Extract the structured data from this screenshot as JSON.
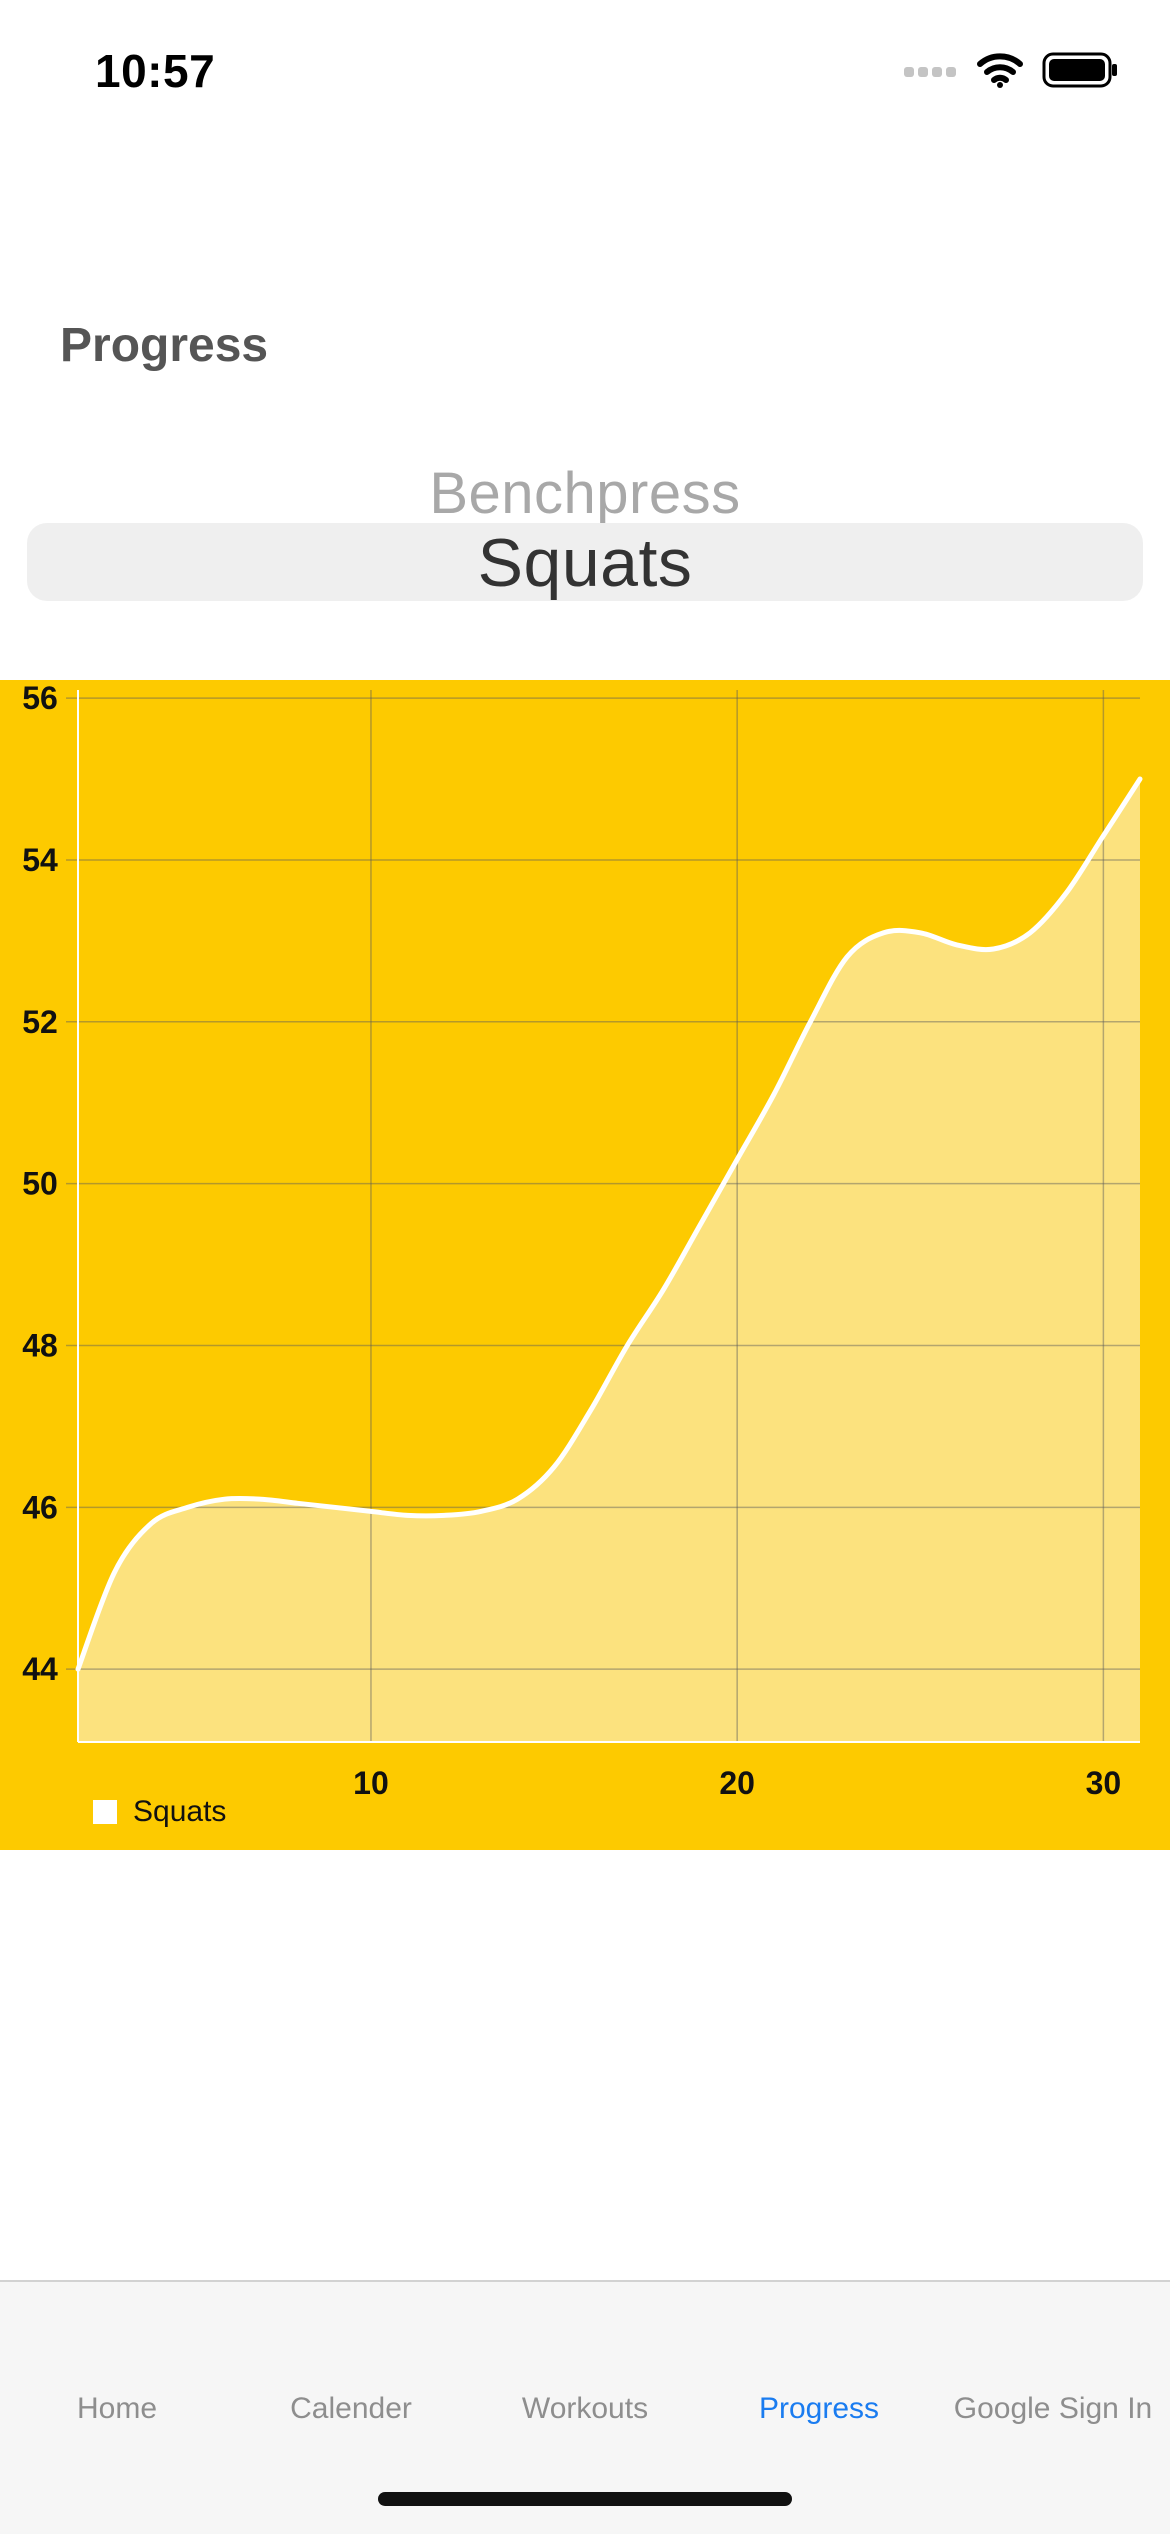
{
  "status_bar": {
    "time": "10:57"
  },
  "page": {
    "title": "Progress"
  },
  "picker": {
    "previous_option": "Benchpress",
    "selected_option": "Squats"
  },
  "colors": {
    "chart_background": "#fdca00",
    "line": "#ffffff",
    "area_fill": "#fce27e",
    "tab_active": "#1a7cf0",
    "tab_inactive": "#8e8e8e"
  },
  "chart_data": {
    "type": "area",
    "title": "",
    "xlabel": "",
    "ylabel": "",
    "xlim": [
      2,
      31
    ],
    "ylim": [
      43.1,
      56.1
    ],
    "x_ticks": [
      10,
      20,
      30
    ],
    "y_ticks": [
      44,
      46,
      48,
      50,
      52,
      54,
      56
    ],
    "grid": true,
    "legend": "bottom-left",
    "series": [
      {
        "name": "Squats",
        "x": [
          2,
          3,
          4,
          5,
          6,
          7,
          8,
          9,
          10,
          11,
          12,
          13,
          14,
          15,
          16,
          17,
          18,
          19,
          20,
          21,
          22,
          23,
          24,
          25,
          26,
          27,
          28,
          29,
          30,
          31
        ],
        "y": [
          44.0,
          45.2,
          45.8,
          46.0,
          46.1,
          46.1,
          46.05,
          46.0,
          45.95,
          45.9,
          45.9,
          45.95,
          46.1,
          46.5,
          47.2,
          48.0,
          48.7,
          49.5,
          50.3,
          51.1,
          52.0,
          52.8,
          53.1,
          53.1,
          52.95,
          52.9,
          53.1,
          53.6,
          54.3,
          55.0
        ]
      }
    ]
  },
  "tab_bar": {
    "items": [
      {
        "label": "Home",
        "active": false
      },
      {
        "label": "Calender",
        "active": false
      },
      {
        "label": "Workouts",
        "active": false
      },
      {
        "label": "Progress",
        "active": true
      },
      {
        "label": "Google Sign In",
        "active": false
      }
    ]
  }
}
